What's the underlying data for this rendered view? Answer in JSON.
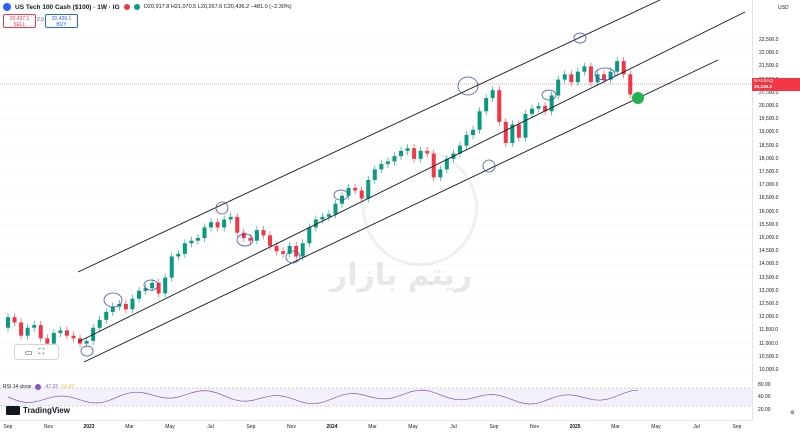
{
  "header": {
    "symbol": "US Tech 100 Cash ($100) · 1W · IG",
    "ohlc": "O20,917.8 H21,070.5 L20,267.6 C20,436.2 −481.0 (−2.30%)"
  },
  "trade": {
    "sell_price": "20,437.1",
    "sell_label": "SELL",
    "spread": "2.0",
    "buy_price": "20,439.1",
    "buy_label": "BUY"
  },
  "price_axis": {
    "currency": "USD",
    "ticks": [
      "22,500.0",
      "22,000.0",
      "21,500.0",
      "21,000.0",
      "20,500.0",
      "20,000.0",
      "19,500.0",
      "19,000.0",
      "18,500.0",
      "18,000.0",
      "17,500.0",
      "17,000.0",
      "16,500.0",
      "16,000.0",
      "15,500.0",
      "15,000.0",
      "14,500.0",
      "14,000.0",
      "13,500.0",
      "13,000.0",
      "12,500.0",
      "12,000.0",
      "11,500.0",
      "11,000.0",
      "10,500.0",
      "10,000.0"
    ],
    "last_tag_symbol": "NASSAQ",
    "last_tag_price": "20,436.2",
    "last_tag_time": "5d 18h"
  },
  "rsi": {
    "label": "RSI 14 close",
    "value1": "47.33",
    "value2": "56.83",
    "axis_ticks": [
      "80.00",
      "40.00",
      "20.00"
    ]
  },
  "time_axis": {
    "ticks": [
      {
        "label": "Sep",
        "bold": false
      },
      {
        "label": "Nov",
        "bold": false
      },
      {
        "label": "2023",
        "bold": true
      },
      {
        "label": "Mar",
        "bold": false
      },
      {
        "label": "May",
        "bold": false
      },
      {
        "label": "Jul",
        "bold": false
      },
      {
        "label": "Sep",
        "bold": false
      },
      {
        "label": "Nov",
        "bold": false
      },
      {
        "label": "2024",
        "bold": true
      },
      {
        "label": "Mar",
        "bold": false
      },
      {
        "label": "May",
        "bold": false
      },
      {
        "label": "Jul",
        "bold": false
      },
      {
        "label": "Sep",
        "bold": false
      },
      {
        "label": "Nov",
        "bold": false
      },
      {
        "label": "2025",
        "bold": true
      },
      {
        "label": "Mar",
        "bold": false
      },
      {
        "label": "May",
        "bold": false
      },
      {
        "label": "Jul",
        "bold": false
      },
      {
        "label": "Sep",
        "bold": false
      }
    ]
  },
  "branding": {
    "logo_text": "TradingView"
  },
  "watermark": {
    "text": "ریتم بازار"
  },
  "colors": {
    "up": "#089981",
    "down": "#f23645",
    "accent": "#2962ff",
    "channel": "#131722",
    "target": "#22b14c"
  },
  "chart_data": {
    "type": "candlestick",
    "y_range": [
      10000,
      22500
    ],
    "closes": [
      12000,
      11800,
      11300,
      11600,
      11700,
      11200,
      11000,
      11400,
      11500,
      11300,
      11200,
      11000,
      11100,
      11600,
      11900,
      12200,
      12400,
      12500,
      12300,
      12700,
      13000,
      13100,
      13300,
      12900,
      13500,
      14300,
      14400,
      14800,
      14900,
      15000,
      15400,
      15600,
      15400,
      15700,
      15800,
      15200,
      15000,
      14900,
      15300,
      15100,
      14700,
      14500,
      14400,
      14700,
      14300,
      14800,
      15400,
      15700,
      15800,
      15900,
      16300,
      16600,
      16900,
      16800,
      16500,
      17200,
      17600,
      17800,
      17900,
      18100,
      18300,
      18400,
      18000,
      18300,
      18200,
      17300,
      17600,
      18000,
      18200,
      18500,
      18900,
      19100,
      19800,
      20300,
      20600,
      19400,
      18600,
      19300,
      18800,
      19700,
      19900,
      20000,
      19800,
      20400,
      21000,
      21200,
      20900,
      21300,
      21500,
      20900,
      21200,
      21000,
      21300,
      21700,
      21200,
      20436
    ]
  }
}
